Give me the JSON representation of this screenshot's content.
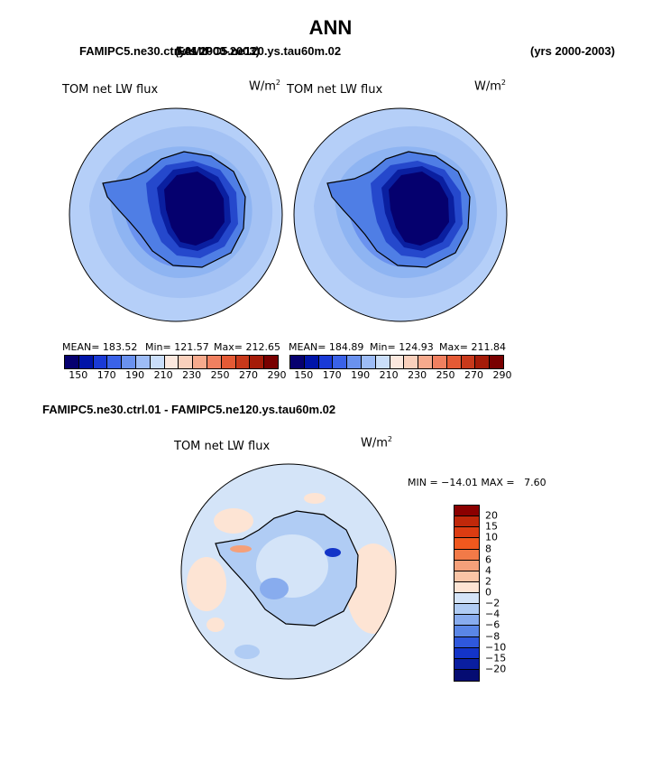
{
  "title": "ANN",
  "header_left_case1": "FAMIPC5.ne30.ctrl.01",
  "header_left_case2": "FAMIPC5.ne120.ys.tau60m.02",
  "header_left_years": "(yrs 2000-2003)",
  "header_right_years": "(yrs 2000-2003)",
  "panel_label": "TOM net LW flux",
  "units_base": "W/m",
  "units_exp": "2",
  "left_panel": {
    "mean": "MEAN= 183.52",
    "min": "Min= 121.57",
    "max": "Max= 212.65"
  },
  "right_panel": {
    "mean": "MEAN= 184.89",
    "min": "Min= 124.93",
    "max": "Max= 211.84"
  },
  "colorbar_ticks": [
    "150",
    "170",
    "190",
    "210",
    "230",
    "250",
    "270",
    "290"
  ],
  "colorbar_colors": [
    "#06006f",
    "#0014a8",
    "#1a3ad6",
    "#3a62e8",
    "#6a92ef",
    "#9dbcf6",
    "#cadef9",
    "#fbe8de",
    "#f9d0bc",
    "#f6aa8d",
    "#f08060",
    "#e45a35",
    "#c8391b",
    "#a51b08",
    "#790000"
  ],
  "diff_title": "FAMIPC5.ne30.ctrl.01 - FAMIPC5.ne120.ys.tau60m.02",
  "diff_stats": "MIN = −14.01 MAX =   7.60",
  "diff_ticks": [
    "20",
    "15",
    "10",
    "8",
    "6",
    "4",
    "2",
    "0",
    "−2",
    "−4",
    "−6",
    "−8",
    "−10",
    "−15",
    "−20"
  ],
  "diff_colors": [
    "#8b0000",
    "#c0280a",
    "#dc3c12",
    "#f0581e",
    "#f27a48",
    "#f5a07a",
    "#f9c4a6",
    "#fde4d4",
    "#d4e4f8",
    "#b0ccf4",
    "#88acee",
    "#5a86e6",
    "#2f58dc",
    "#1334c8",
    "#0a1ea0",
    "#050c72"
  ],
  "map_colors": {
    "ocean_outer": "#b5cff8",
    "ocean_mid": "#8eb4f2",
    "ice_edge": "#4f7ee5",
    "coast": "#2548cc",
    "interior": "#0a1fa0",
    "plateau": "#05006e",
    "diff_bg": "#d4e4f8",
    "diff_pos": "#fde4d4"
  }
}
